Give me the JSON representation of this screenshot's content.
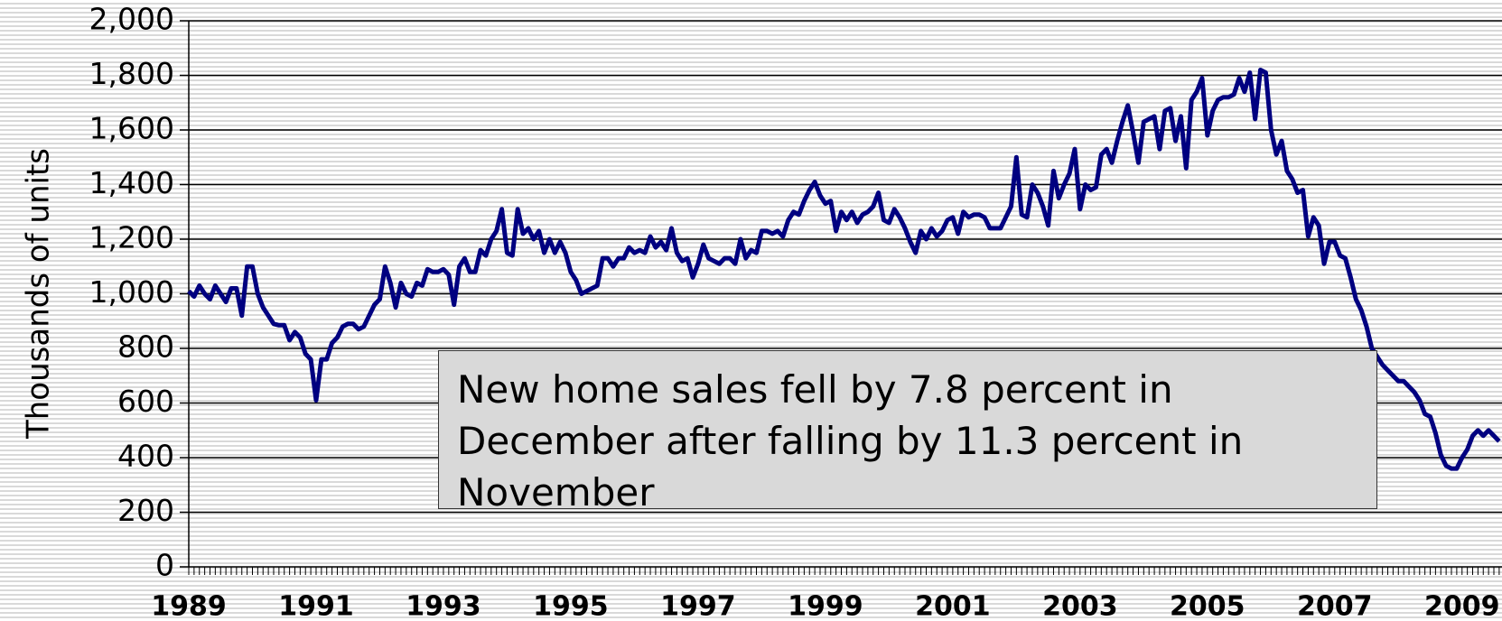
{
  "chart_data": {
    "type": "line",
    "y_axis_label": "Thousands of units",
    "annotation": "New home sales fell by 7.8 percent in December after falling by 11.3 percent in November",
    "color": "#000080",
    "ylim": [
      0,
      2000
    ],
    "yticks": [
      0,
      200,
      400,
      600,
      800,
      {
        "value": 1000,
        "label": "1,000"
      },
      {
        "value": 1200,
        "label": "1,200"
      },
      {
        "value": 1400,
        "label": "1,400"
      },
      {
        "value": 1600,
        "label": "1,600"
      },
      {
        "value": 1800,
        "label": "1,800"
      },
      {
        "value": 2000,
        "label": "2,000"
      }
    ],
    "grid": true,
    "categories": [
      "1989",
      null,
      null,
      null,
      null,
      null,
      null,
      null,
      null,
      null,
      null,
      null,
      null,
      null,
      null,
      null,
      null,
      null,
      null,
      null,
      null,
      null,
      null,
      null,
      "1991",
      null,
      null,
      null,
      null,
      null,
      null,
      null,
      null,
      null,
      null,
      null,
      null,
      null,
      null,
      null,
      null,
      null,
      null,
      null,
      null,
      null,
      null,
      null,
      "1993",
      null,
      null,
      null,
      null,
      null,
      null,
      null,
      null,
      null,
      null,
      null,
      null,
      null,
      null,
      null,
      null,
      null,
      null,
      null,
      null,
      null,
      null,
      null,
      "1995",
      null,
      null,
      null,
      null,
      null,
      null,
      null,
      null,
      null,
      null,
      null,
      null,
      null,
      null,
      null,
      null,
      null,
      null,
      null,
      null,
      null,
      null,
      null,
      "1997",
      null,
      null,
      null,
      null,
      null,
      null,
      null,
      null,
      null,
      null,
      null,
      null,
      null,
      null,
      null,
      null,
      null,
      null,
      null,
      null,
      null,
      null,
      null,
      "1999",
      null,
      null,
      null,
      null,
      null,
      null,
      null,
      null,
      null,
      null,
      null,
      null,
      null,
      null,
      null,
      null,
      null,
      null,
      null,
      null,
      null,
      null,
      null,
      "2001",
      null,
      null,
      null,
      null,
      null,
      null,
      null,
      null,
      null,
      null,
      null,
      null,
      null,
      null,
      null,
      null,
      null,
      null,
      null,
      null,
      null,
      null,
      null,
      "2003",
      null,
      null,
      null,
      null,
      null,
      null,
      null,
      null,
      null,
      null,
      null,
      null,
      null,
      null,
      null,
      null,
      null,
      null,
      null,
      null,
      null,
      null,
      null,
      "2005",
      null,
      null,
      null,
      null,
      null,
      null,
      null,
      null,
      null,
      null,
      null,
      null,
      null,
      null,
      null,
      null,
      null,
      null,
      null,
      null,
      null,
      null,
      null,
      "2007",
      null,
      null,
      null,
      null,
      null,
      null,
      null,
      null,
      null,
      null,
      null,
      null,
      null,
      null,
      null,
      null,
      null,
      null,
      null,
      null,
      null,
      null,
      null,
      "2009",
      null,
      null,
      null,
      null,
      null,
      null,
      null
    ],
    "values": [
      1010,
      990,
      1030,
      1000,
      980,
      1030,
      1000,
      970,
      1020,
      1020,
      920,
      1100,
      1100,
      1000,
      950,
      920,
      890,
      885,
      885,
      830,
      860,
      840,
      780,
      760,
      610,
      760,
      760,
      820,
      840,
      880,
      890,
      890,
      870,
      880,
      920,
      960,
      980,
      1100,
      1040,
      950,
      1040,
      1000,
      990,
      1040,
      1030,
      1090,
      1080,
      1080,
      1090,
      1070,
      960,
      1100,
      1130,
      1080,
      1080,
      1160,
      1140,
      1200,
      1230,
      1310,
      1150,
      1140,
      1310,
      1220,
      1240,
      1200,
      1230,
      1150,
      1200,
      1150,
      1190,
      1150,
      1080,
      1050,
      1000,
      1010,
      1020,
      1030,
      1130,
      1130,
      1100,
      1130,
      1130,
      1170,
      1150,
      1160,
      1150,
      1210,
      1170,
      1190,
      1160,
      1240,
      1150,
      1120,
      1130,
      1060,
      1110,
      1180,
      1130,
      1120,
      1110,
      1130,
      1130,
      1110,
      1200,
      1130,
      1160,
      1150,
      1230,
      1230,
      1220,
      1230,
      1210,
      1270,
      1300,
      1290,
      1340,
      1380,
      1410,
      1360,
      1330,
      1340,
      1230,
      1300,
      1270,
      1300,
      1260,
      1290,
      1300,
      1320,
      1370,
      1270,
      1260,
      1310,
      1280,
      1240,
      1190,
      1150,
      1230,
      1200,
      1240,
      1210,
      1230,
      1270,
      1280,
      1220,
      1300,
      1280,
      1290,
      1290,
      1280,
      1240,
      1240,
      1240,
      1280,
      1320,
      1500,
      1290,
      1280,
      1400,
      1370,
      1320,
      1250,
      1450,
      1350,
      1400,
      1440,
      1530,
      1310,
      1400,
      1380,
      1390,
      1510,
      1530,
      1480,
      1560,
      1630,
      1690,
      1590,
      1480,
      1630,
      1640,
      1650,
      1530,
      1670,
      1680,
      1560,
      1650,
      1460,
      1710,
      1740,
      1790,
      1580,
      1670,
      1710,
      1720,
      1720,
      1730,
      1790,
      1740,
      1810,
      1640,
      1820,
      1810,
      1600,
      1510,
      1560,
      1450,
      1420,
      1370,
      1380,
      1210,
      1280,
      1250,
      1110,
      1190,
      1190,
      1140,
      1130,
      1060,
      980,
      940,
      880,
      800,
      770,
      740,
      720,
      700,
      680,
      680,
      660,
      640,
      610,
      560,
      550,
      490,
      410,
      370,
      360,
      360,
      400,
      430,
      480,
      500,
      480,
      500,
      480,
      460
    ]
  }
}
